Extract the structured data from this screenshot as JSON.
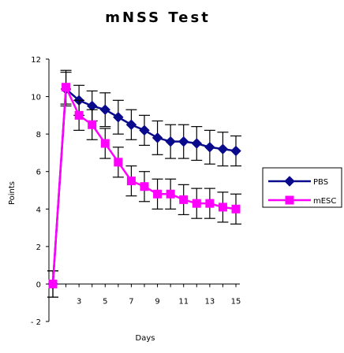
{
  "chart_data": {
    "type": "line",
    "title": "mNSS Test",
    "xlabel": "Days",
    "ylabel": "Points",
    "x": [
      1,
      2,
      3,
      4,
      5,
      6,
      7,
      8,
      9,
      10,
      11,
      12,
      13,
      14,
      15
    ],
    "xlim": [
      1,
      15
    ],
    "ylim": [
      -2,
      12
    ],
    "xticks": [
      3,
      5,
      7,
      9,
      11,
      13,
      15
    ],
    "yticks": [
      -2,
      0,
      2,
      4,
      6,
      8,
      10,
      12
    ],
    "grid": false,
    "legend_position": "right",
    "series": [
      {
        "name": "PBS",
        "color": "#0a0a8c",
        "marker": "diamond",
        "values": [
          0,
          10.4,
          9.8,
          9.5,
          9.3,
          8.9,
          8.5,
          8.2,
          7.8,
          7.6,
          7.6,
          7.5,
          7.3,
          7.2,
          7.1
        ],
        "errors": [
          0.7,
          0.9,
          0.8,
          0.8,
          0.9,
          0.9,
          0.8,
          0.8,
          0.9,
          0.9,
          0.9,
          0.9,
          0.9,
          0.9,
          0.8
        ]
      },
      {
        "name": "mESC",
        "color": "#ff00ff",
        "marker": "square",
        "values": [
          0,
          10.5,
          9.0,
          8.5,
          7.5,
          6.5,
          5.5,
          5.2,
          4.8,
          4.8,
          4.5,
          4.3,
          4.3,
          4.1,
          4.0
        ],
        "errors": [
          0.7,
          0.9,
          0.8,
          0.8,
          0.8,
          0.8,
          0.8,
          0.8,
          0.8,
          0.8,
          0.8,
          0.8,
          0.8,
          0.8,
          0.8
        ]
      }
    ]
  }
}
